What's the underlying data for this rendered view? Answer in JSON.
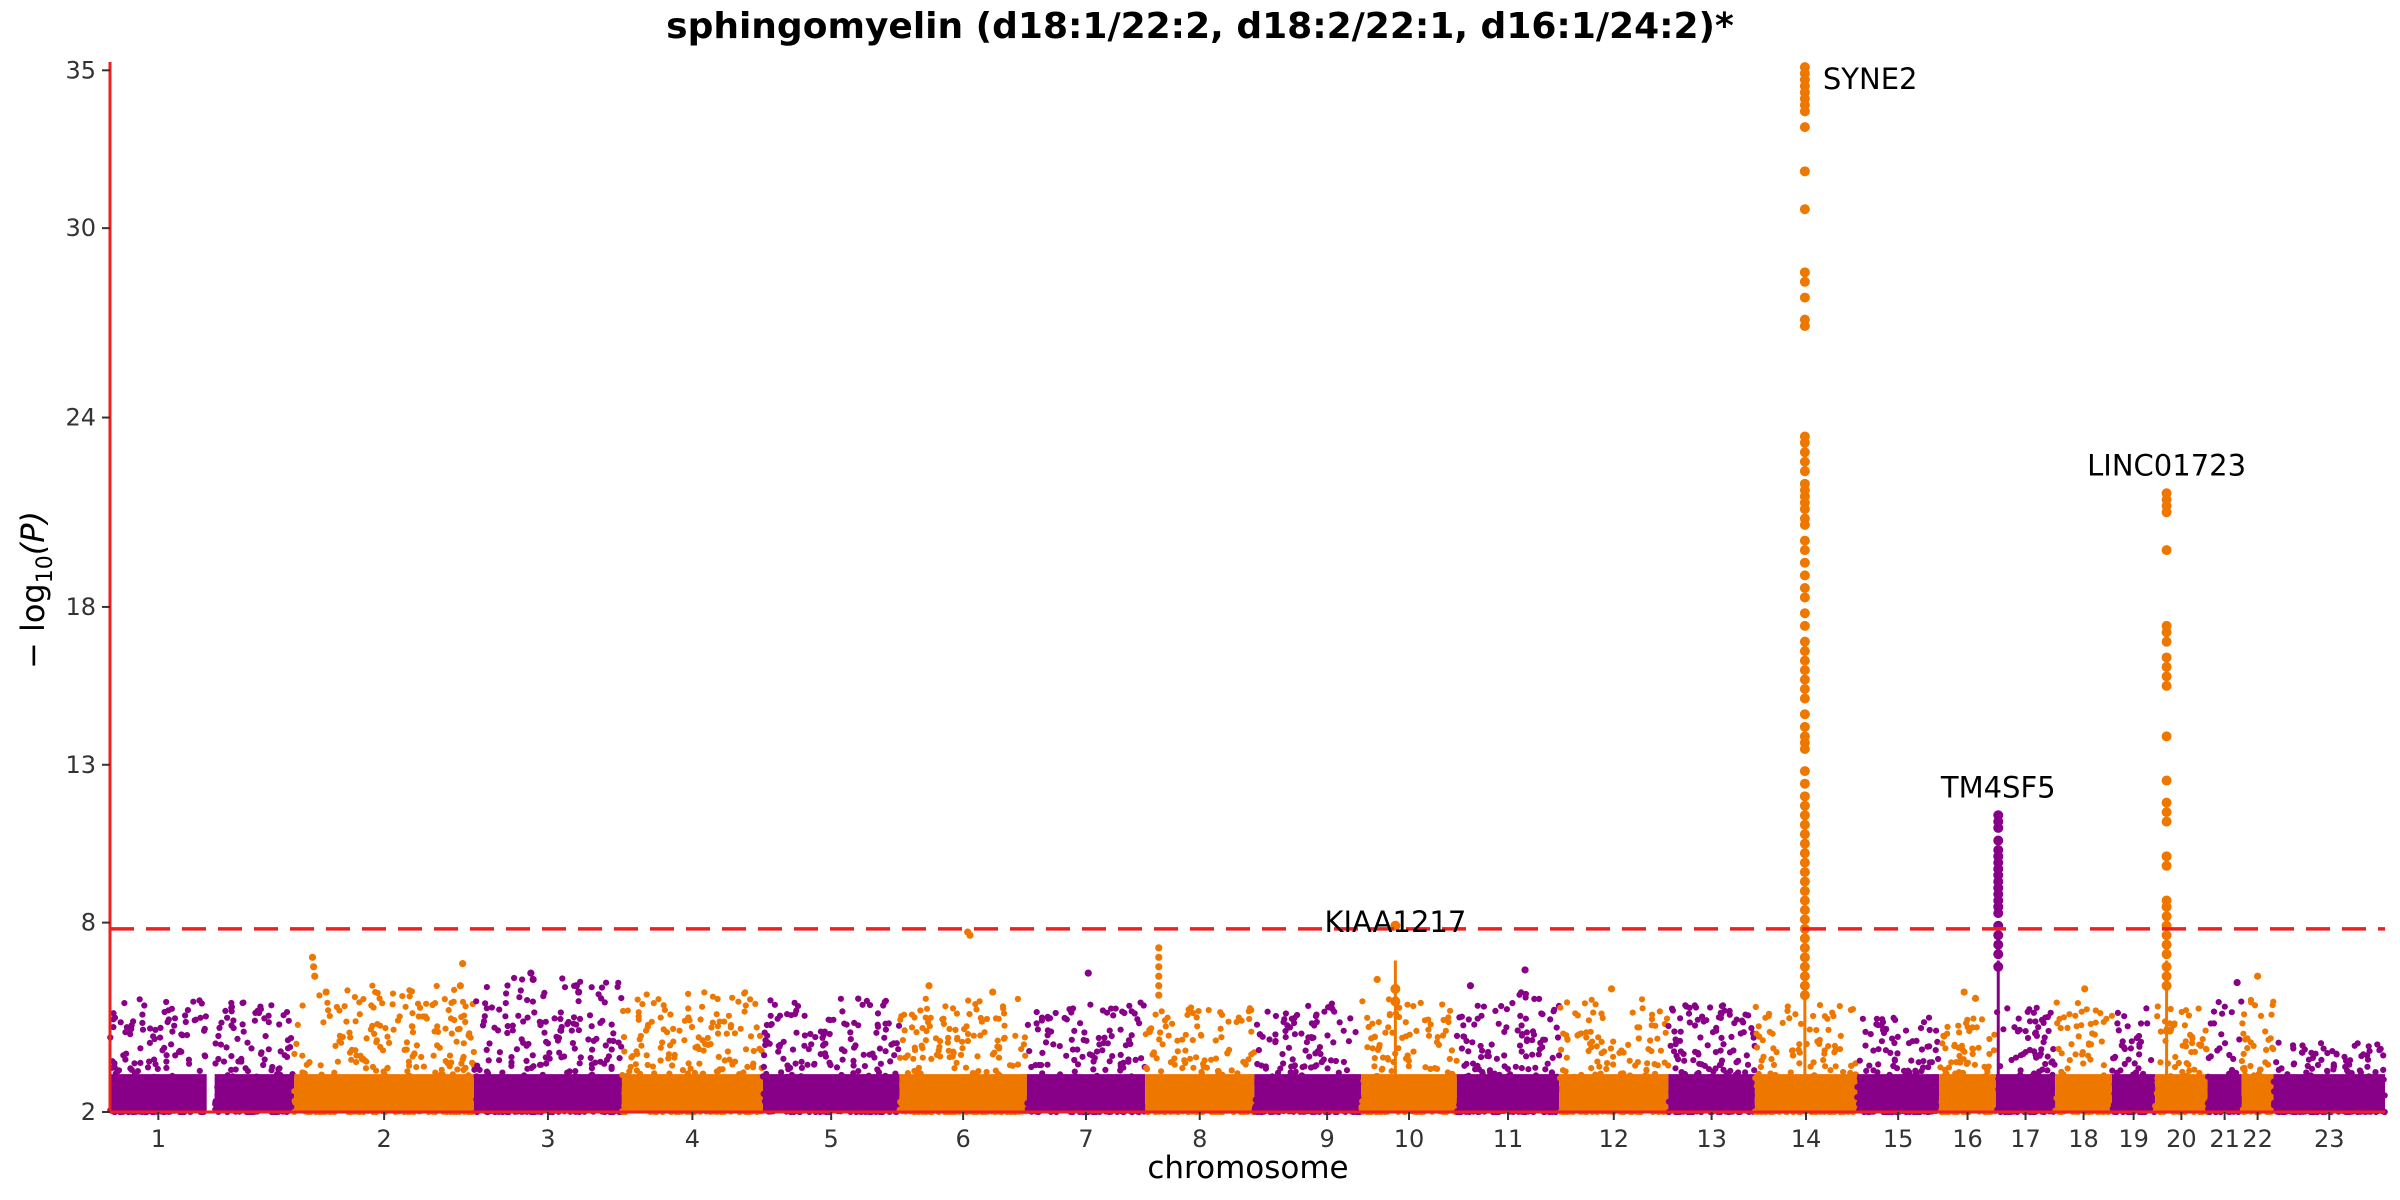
{
  "chart_data": {
    "type": "scatter",
    "subtype": "manhattan",
    "title": "sphingomyelin (d18:1/22:2, d18:2/22:1, d16:1/24:2)*",
    "xlabel": "chromosome",
    "ylabel_prefix": "− log",
    "ylabel_sub": "10",
    "ylabel_suffix": "(P)",
    "ylim": [
      2,
      35.2
    ],
    "yticks": [
      2,
      8,
      13,
      18,
      24,
      30,
      35
    ],
    "grid": false,
    "legend": "none",
    "colors": {
      "odd": "#880088",
      "even": "#EE7700",
      "threshold": "#EE2020",
      "axis": "#EE2020"
    },
    "threshold": 7.8,
    "chromosomes": [
      {
        "label": "1",
        "start": 0.0,
        "end": 4.25,
        "max_bg": 5.6,
        "color": "#880088"
      },
      {
        "label": "",
        "start": 4.6,
        "end": 8.1,
        "max_bg": 5.6,
        "color": "#880088"
      },
      {
        "label": "2",
        "start": 8.1,
        "end": 16.0,
        "max_bg": 6.0,
        "color": "#EE7700"
      },
      {
        "label": "3",
        "start": 16.0,
        "end": 22.5,
        "max_bg": 6.3,
        "color": "#880088"
      },
      {
        "label": "4",
        "start": 22.5,
        "end": 28.7,
        "max_bg": 5.8,
        "color": "#EE7700"
      },
      {
        "label": "5",
        "start": 28.7,
        "end": 34.7,
        "max_bg": 5.6,
        "color": "#880088"
      },
      {
        "label": "6",
        "start": 34.7,
        "end": 40.3,
        "max_bg": 5.6,
        "color": "#EE7700"
      },
      {
        "label": "7",
        "start": 40.3,
        "end": 45.5,
        "max_bg": 5.5,
        "color": "#880088"
      },
      {
        "label": "8",
        "start": 45.5,
        "end": 50.3,
        "max_bg": 5.4,
        "color": "#EE7700"
      },
      {
        "label": "",
        "start": 50.3,
        "end": 52.0,
        "max_bg": 5.3,
        "color": "#880088"
      },
      {
        "label": "9",
        "start": 52.0,
        "end": 55.0,
        "max_bg": 5.5,
        "color": "#880088"
      },
      {
        "label": "10",
        "start": 55.0,
        "end": 59.2,
        "max_bg": 5.6,
        "color": "#EE7700"
      },
      {
        "label": "11",
        "start": 59.2,
        "end": 63.7,
        "max_bg": 5.8,
        "color": "#880088"
      },
      {
        "label": "12",
        "start": 63.7,
        "end": 68.5,
        "max_bg": 5.6,
        "color": "#EE7700"
      },
      {
        "label": "13",
        "start": 68.5,
        "end": 72.3,
        "max_bg": 5.4,
        "color": "#880088"
      },
      {
        "label": "14",
        "start": 72.3,
        "end": 76.8,
        "max_bg": 5.4,
        "color": "#EE7700"
      },
      {
        "label": "15",
        "start": 76.8,
        "end": 80.4,
        "max_bg": 5.0,
        "color": "#880088"
      },
      {
        "label": "16",
        "start": 80.4,
        "end": 82.9,
        "max_bg": 5.0,
        "color": "#EE7700"
      },
      {
        "label": "17",
        "start": 82.9,
        "end": 85.5,
        "max_bg": 5.5,
        "color": "#880088"
      },
      {
        "label": "18",
        "start": 85.5,
        "end": 88.0,
        "max_bg": 5.5,
        "color": "#EE7700"
      },
      {
        "label": "19",
        "start": 88.0,
        "end": 89.9,
        "max_bg": 5.3,
        "color": "#880088"
      },
      {
        "label": "20",
        "start": 89.9,
        "end": 92.2,
        "max_bg": 5.4,
        "color": "#EE7700"
      },
      {
        "label": "21",
        "start": 92.2,
        "end": 93.7,
        "max_bg": 5.8,
        "color": "#880088"
      },
      {
        "label": "22",
        "start": 93.7,
        "end": 95.1,
        "max_bg": 5.8,
        "color": "#EE7700"
      },
      {
        "label": "23",
        "start": 95.1,
        "end": 100.0,
        "max_bg": 4.2,
        "color": "#880088"
      }
    ],
    "peaks": [
      {
        "gene": "SYNE2",
        "chromosome": "14",
        "x": 74.5,
        "top": 35.1,
        "color": "#EE7700",
        "values": [
          35.1,
          34.9,
          34.7,
          34.5,
          34.3,
          34.1,
          33.9,
          33.7,
          33.2,
          31.8,
          30.6,
          28.6,
          28.3,
          27.8,
          27.1,
          26.9,
          23.4,
          23.2,
          22.9,
          22.6,
          22.3,
          21.9,
          21.7,
          21.5,
          21.3,
          21.1,
          20.8,
          20.6,
          20.1,
          19.8,
          19.4,
          19.0,
          18.6,
          18.3,
          17.8,
          17.4,
          16.9,
          16.6,
          16.3,
          16.0,
          15.7,
          15.4,
          15.1,
          14.6,
          14.2,
          13.9,
          13.7,
          13.5,
          12.8,
          12.4,
          12.0,
          11.7,
          11.4,
          11.1,
          10.8,
          10.5,
          10.2,
          9.9,
          9.6,
          9.3,
          9.0,
          8.7,
          8.4,
          8.1,
          7.8,
          7.5,
          7.2,
          6.9,
          6.6,
          6.3,
          6.0,
          5.7
        ]
      },
      {
        "gene": "TM4SF5",
        "chromosome": "17",
        "x": 83.0,
        "top": 11.4,
        "color": "#880088",
        "values": [
          11.4,
          11.2,
          11.0,
          10.6,
          10.3,
          10.1,
          9.9,
          9.7,
          9.5,
          9.3,
          9.1,
          8.9,
          8.7,
          8.5,
          8.3,
          7.9,
          7.6,
          7.3,
          7.0,
          6.6
        ]
      },
      {
        "gene": "LINC01723",
        "chromosome": "20",
        "x": 90.4,
        "top": 21.6,
        "color": "#EE7700",
        "values": [
          21.6,
          21.4,
          21.2,
          21.0,
          19.8,
          17.4,
          17.2,
          16.9,
          16.4,
          16.1,
          15.8,
          15.5,
          13.9,
          12.5,
          11.8,
          11.5,
          11.2,
          10.1,
          9.8,
          8.7,
          8.5,
          8.2,
          7.9,
          7.6,
          7.3,
          7.0,
          6.6,
          6.3,
          6.0
        ]
      },
      {
        "gene": "KIAA1217",
        "chromosome": "10",
        "x": 56.5,
        "top": 7.9,
        "color": "#EE7700",
        "values": [
          7.9,
          5.9,
          5.5
        ]
      }
    ],
    "extra_points": [
      {
        "x": 8.9,
        "y": 6.9,
        "color": "#EE7700"
      },
      {
        "x": 8.95,
        "y": 6.6,
        "color": "#EE7700"
      },
      {
        "x": 9.0,
        "y": 6.3,
        "color": "#EE7700"
      },
      {
        "x": 9.5,
        "y": 5.8,
        "color": "#EE7700"
      },
      {
        "x": 15.5,
        "y": 6.7,
        "color": "#EE7700"
      },
      {
        "x": 15.4,
        "y": 6.0,
        "color": "#EE7700"
      },
      {
        "x": 18.5,
        "y": 6.4,
        "color": "#880088"
      },
      {
        "x": 18.6,
        "y": 6.2,
        "color": "#880088"
      },
      {
        "x": 20.5,
        "y": 6.0,
        "color": "#880088"
      },
      {
        "x": 20.6,
        "y": 5.8,
        "color": "#880088"
      },
      {
        "x": 37.7,
        "y": 7.7,
        "color": "#EE7700"
      },
      {
        "x": 37.8,
        "y": 7.6,
        "color": "#EE7700"
      },
      {
        "x": 36.0,
        "y": 6.0,
        "color": "#EE7700"
      },
      {
        "x": 38.8,
        "y": 5.8,
        "color": "#EE7700"
      },
      {
        "x": 43.0,
        "y": 6.4,
        "color": "#880088"
      },
      {
        "x": 46.1,
        "y": 7.2,
        "color": "#EE7700"
      },
      {
        "x": 46.1,
        "y": 6.9,
        "color": "#EE7700"
      },
      {
        "x": 46.1,
        "y": 6.6,
        "color": "#EE7700"
      },
      {
        "x": 46.1,
        "y": 6.3,
        "color": "#EE7700"
      },
      {
        "x": 46.1,
        "y": 6.0,
        "color": "#EE7700"
      },
      {
        "x": 46.1,
        "y": 5.7,
        "color": "#EE7700"
      },
      {
        "x": 55.7,
        "y": 6.2,
        "color": "#EE7700"
      },
      {
        "x": 62.2,
        "y": 6.5,
        "color": "#880088"
      },
      {
        "x": 59.8,
        "y": 6.0,
        "color": "#880088"
      },
      {
        "x": 66.0,
        "y": 5.9,
        "color": "#EE7700"
      },
      {
        "x": 81.5,
        "y": 5.8,
        "color": "#EE7700"
      },
      {
        "x": 82.0,
        "y": 5.6,
        "color": "#EE7700"
      },
      {
        "x": 86.8,
        "y": 5.9,
        "color": "#EE7700"
      },
      {
        "x": 93.5,
        "y": 6.1,
        "color": "#880088"
      },
      {
        "x": 94.4,
        "y": 6.3,
        "color": "#EE7700"
      }
    ]
  }
}
